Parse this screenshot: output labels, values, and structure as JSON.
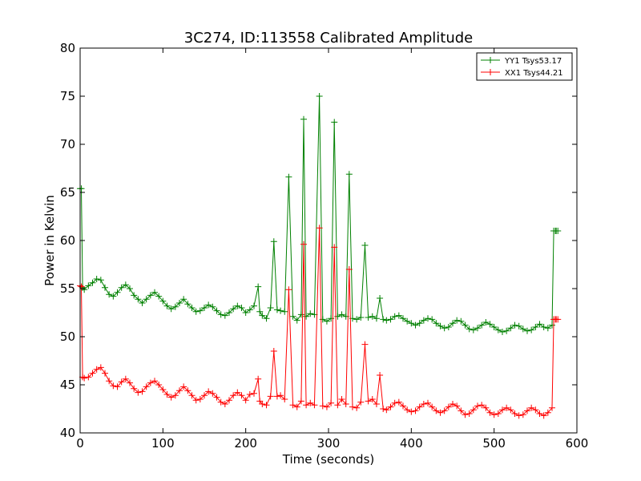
{
  "chart_data": {
    "type": "line",
    "title": "3C274, ID:113558 Calibrated Amplitude",
    "xlabel": "Time (seconds)",
    "ylabel": "Power in Kelvin",
    "xlim": [
      0,
      600
    ],
    "ylim": [
      40,
      80
    ],
    "xticks": [
      "0",
      "100",
      "200",
      "300",
      "400",
      "500",
      "600"
    ],
    "yticks": [
      "40",
      "45",
      "50",
      "55",
      "60",
      "65",
      "70",
      "75",
      "80"
    ],
    "grid": false,
    "legend_position": "top-right",
    "series": [
      {
        "name": "YY1 Tsys53.17",
        "color": "#008000",
        "marker": "plus",
        "x": [
          0,
          1.5,
          3,
          5,
          10,
          15,
          20,
          25,
          30,
          35,
          40,
          45,
          50,
          55,
          60,
          65,
          70,
          75,
          80,
          85,
          90,
          95,
          100,
          105,
          110,
          115,
          120,
          125,
          130,
          135,
          140,
          145,
          150,
          155,
          160,
          165,
          170,
          175,
          180,
          185,
          190,
          195,
          200,
          205,
          210,
          215,
          217,
          220,
          225,
          230,
          234,
          238,
          242,
          247,
          252,
          257,
          262,
          267,
          270,
          273,
          278,
          283,
          289,
          293,
          298,
          303,
          307,
          311,
          316,
          321,
          325,
          329,
          334,
          339,
          344,
          348,
          353,
          358,
          362,
          366,
          370,
          375,
          380,
          385,
          390,
          395,
          400,
          405,
          410,
          415,
          420,
          425,
          430,
          435,
          440,
          445,
          450,
          455,
          460,
          465,
          470,
          475,
          480,
          485,
          490,
          495,
          500,
          505,
          510,
          515,
          520,
          525,
          530,
          535,
          540,
          545,
          550,
          555,
          560,
          565,
          570,
          572,
          574,
          575,
          577
        ],
        "y": [
          65.4,
          65.4,
          55.1,
          54.9,
          55.3,
          55.6,
          56.0,
          55.9,
          55.1,
          54.4,
          54.2,
          54.6,
          55.1,
          55.4,
          55.0,
          54.3,
          53.9,
          53.5,
          53.9,
          54.3,
          54.6,
          54.2,
          53.7,
          53.2,
          52.9,
          53.1,
          53.5,
          53.9,
          53.4,
          53.0,
          52.6,
          52.7,
          53.0,
          53.3,
          53.1,
          52.7,
          52.3,
          52.2,
          52.5,
          52.9,
          53.2,
          53.0,
          52.5,
          52.8,
          53.2,
          55.2,
          52.6,
          52.2,
          51.9,
          53.0,
          59.9,
          52.8,
          52.7,
          52.6,
          66.6,
          52.1,
          51.7,
          52.3,
          72.6,
          52.1,
          52.4,
          52.3,
          75.0,
          51.8,
          51.6,
          51.9,
          72.3,
          52.1,
          52.3,
          52.1,
          66.9,
          51.9,
          51.8,
          52.0,
          59.5,
          52.0,
          52.1,
          51.9,
          54.0,
          51.8,
          51.7,
          51.8,
          52.1,
          52.2,
          51.9,
          51.6,
          51.4,
          51.2,
          51.4,
          51.7,
          51.9,
          51.8,
          51.4,
          51.1,
          50.9,
          51.0,
          51.4,
          51.7,
          51.6,
          51.2,
          50.8,
          50.7,
          50.9,
          51.2,
          51.5,
          51.3,
          51.0,
          50.7,
          50.5,
          50.6,
          50.9,
          51.2,
          51.1,
          50.8,
          50.6,
          50.7,
          51.0,
          51.3,
          51.0,
          50.9,
          51.2,
          61.0,
          61.0,
          61.0,
          61.0
        ]
      },
      {
        "name": "XX1 Tsys44.21",
        "color": "#ff0000",
        "marker": "plus",
        "x": [
          0,
          1.5,
          3,
          5,
          10,
          15,
          20,
          25,
          30,
          35,
          40,
          45,
          50,
          55,
          60,
          65,
          70,
          75,
          80,
          85,
          90,
          95,
          100,
          105,
          110,
          115,
          120,
          125,
          130,
          135,
          140,
          145,
          150,
          155,
          160,
          165,
          170,
          175,
          180,
          185,
          190,
          195,
          200,
          205,
          210,
          215,
          217,
          220,
          225,
          230,
          234,
          238,
          242,
          247,
          252,
          257,
          262,
          267,
          270,
          273,
          278,
          283,
          289,
          293,
          298,
          303,
          307,
          311,
          316,
          321,
          325,
          329,
          334,
          339,
          344,
          348,
          353,
          358,
          362,
          366,
          370,
          375,
          380,
          385,
          390,
          395,
          400,
          405,
          410,
          415,
          420,
          425,
          430,
          435,
          440,
          445,
          450,
          455,
          460,
          465,
          470,
          475,
          480,
          485,
          490,
          495,
          500,
          505,
          510,
          515,
          520,
          525,
          530,
          535,
          540,
          545,
          550,
          555,
          560,
          565,
          570,
          572,
          574,
          575,
          577
        ],
        "y": [
          55.3,
          55.2,
          45.8,
          45.7,
          45.8,
          46.2,
          46.6,
          46.8,
          46.2,
          45.4,
          44.9,
          44.8,
          45.3,
          45.6,
          45.2,
          44.6,
          44.2,
          44.3,
          44.8,
          45.2,
          45.4,
          45.0,
          44.5,
          44.0,
          43.7,
          43.9,
          44.4,
          44.8,
          44.4,
          43.9,
          43.4,
          43.5,
          43.9,
          44.3,
          44.1,
          43.7,
          43.2,
          43.0,
          43.4,
          43.9,
          44.2,
          43.9,
          43.4,
          44.0,
          44.1,
          45.6,
          43.3,
          43.0,
          42.9,
          43.8,
          48.5,
          43.8,
          43.9,
          43.5,
          54.9,
          42.9,
          42.7,
          43.3,
          59.6,
          42.9,
          43.1,
          42.9,
          61.3,
          42.8,
          42.7,
          43.1,
          59.3,
          42.9,
          43.5,
          43.0,
          57.0,
          42.7,
          42.6,
          43.2,
          49.2,
          43.3,
          43.5,
          43.0,
          46.0,
          42.5,
          42.4,
          42.7,
          43.1,
          43.2,
          42.8,
          42.4,
          42.2,
          42.3,
          42.7,
          43.0,
          43.1,
          42.7,
          42.3,
          42.1,
          42.3,
          42.7,
          43.0,
          42.8,
          42.3,
          41.9,
          42.0,
          42.4,
          42.8,
          42.9,
          42.6,
          42.1,
          41.9,
          42.0,
          42.4,
          42.6,
          42.4,
          42.0,
          41.8,
          41.9,
          42.3,
          42.6,
          42.4,
          42.0,
          41.8,
          42.1,
          42.6,
          51.8,
          51.8,
          51.8,
          51.8
        ]
      }
    ]
  }
}
